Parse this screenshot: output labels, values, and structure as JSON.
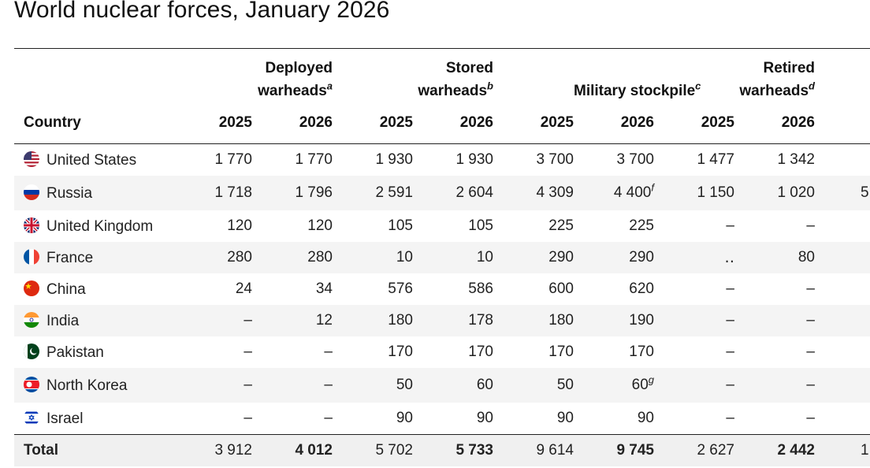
{
  "title": "World nuclear forces, January 2026",
  "headers": {
    "country": "Country",
    "groups": [
      {
        "line1": "Deployed",
        "line2": "warheads",
        "note": "a"
      },
      {
        "line1": "Stored",
        "line2": "warheads",
        "note": "b"
      },
      {
        "line1": "",
        "line2": "Military stockpile",
        "note": "c"
      },
      {
        "line1": "Retired",
        "line2": "warheads",
        "note": "d"
      }
    ],
    "years": [
      "2025",
      "2026",
      "2025",
      "2026",
      "2025",
      "2026",
      "2025",
      "2026"
    ]
  },
  "rows": [
    {
      "country": "United States",
      "flag": "us-flag-icon",
      "cells": [
        "1 770",
        "1 770",
        "1 930",
        "1 930",
        "3 700",
        "3 700",
        "1 477",
        "1 342",
        ""
      ],
      "notes": [
        "",
        "",
        "",
        "",
        "",
        "",
        "",
        "",
        ""
      ]
    },
    {
      "country": "Russia",
      "flag": "russia-flag-icon",
      "cells": [
        "1 718",
        "1 796",
        "2 591",
        "2 604",
        "4 309",
        "4 400",
        "1 150",
        "1 020",
        "5"
      ],
      "notes": [
        "",
        "",
        "",
        "",
        "",
        "f",
        "",
        "",
        ""
      ]
    },
    {
      "country": "United Kingdom",
      "flag": "uk-flag-icon",
      "cells": [
        "120",
        "120",
        "105",
        "105",
        "225",
        "225",
        "–",
        "–",
        ""
      ],
      "notes": [
        "",
        "",
        "",
        "",
        "",
        "",
        "",
        "",
        ""
      ]
    },
    {
      "country": "France",
      "flag": "france-flag-icon",
      "cells": [
        "280",
        "280",
        "10",
        "10",
        "290",
        "290",
        "‥",
        "80",
        ""
      ],
      "notes": [
        "",
        "",
        "",
        "",
        "",
        "",
        "",
        "",
        ""
      ]
    },
    {
      "country": "China",
      "flag": "china-flag-icon",
      "cells": [
        "24",
        "34",
        "576",
        "586",
        "600",
        "620",
        "–",
        "–",
        ""
      ],
      "notes": [
        "",
        "",
        "",
        "",
        "",
        "",
        "",
        "",
        ""
      ]
    },
    {
      "country": "India",
      "flag": "india-flag-icon",
      "cells": [
        "–",
        "12",
        "180",
        "178",
        "180",
        "190",
        "–",
        "–",
        ""
      ],
      "notes": [
        "",
        "",
        "",
        "",
        "",
        "",
        "",
        "",
        ""
      ]
    },
    {
      "country": "Pakistan",
      "flag": "pakistan-flag-icon",
      "cells": [
        "–",
        "–",
        "170",
        "170",
        "170",
        "170",
        "–",
        "–",
        ""
      ],
      "notes": [
        "",
        "",
        "",
        "",
        "",
        "",
        "",
        "",
        ""
      ]
    },
    {
      "country": "North Korea",
      "flag": "north-korea-flag-icon",
      "cells": [
        "–",
        "–",
        "50",
        "60",
        "50",
        "60",
        "–",
        "–",
        ""
      ],
      "notes": [
        "",
        "",
        "",
        "",
        "",
        "g",
        "",
        "",
        ""
      ]
    },
    {
      "country": "Israel",
      "flag": "israel-flag-icon",
      "cells": [
        "–",
        "–",
        "90",
        "90",
        "90",
        "90",
        "–",
        "–",
        ""
      ],
      "notes": [
        "",
        "",
        "",
        "",
        "",
        "",
        "",
        "",
        ""
      ]
    }
  ],
  "total": {
    "label": "Total",
    "cells": [
      "3 912",
      "4 012",
      "5 702",
      "5 733",
      "9 614",
      "9 745",
      "2 627",
      "2 442",
      "1"
    ]
  }
}
